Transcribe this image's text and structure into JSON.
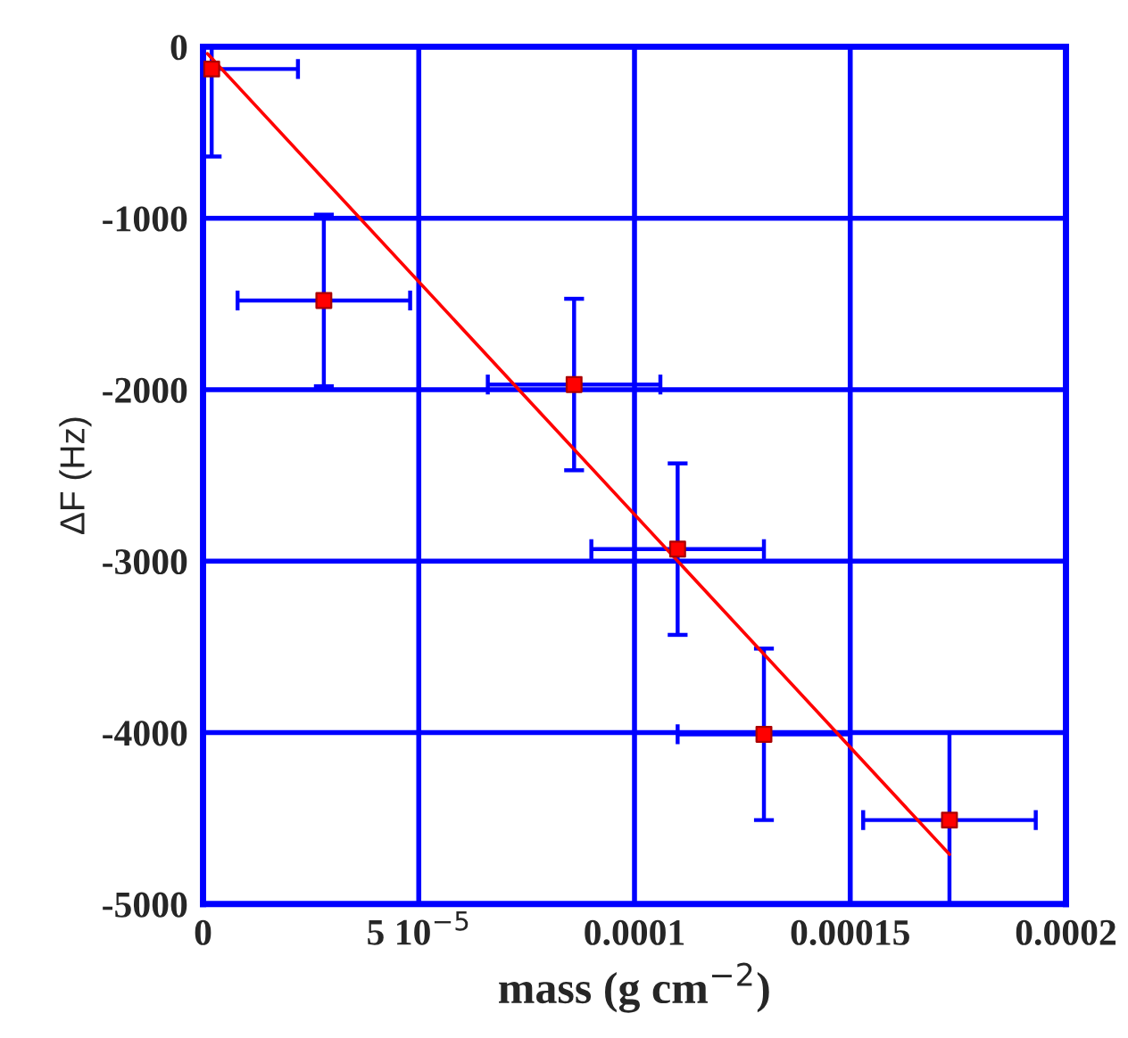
{
  "chart_data": {
    "type": "scatter",
    "xlabel": "mass (g cm$^{−2}$)",
    "ylabel": "ΔF (Hz)",
    "series": [
      {
        "color": "#ff0000",
        "x": [
          2e-06,
          2.8e-05,
          8.6e-05,
          0.00011,
          0.00013,
          0.000173
        ],
        "values": [
          -130,
          -1480,
          -1970,
          -2930,
          -4010,
          -4510
        ],
        "errors": [
          [
            -640,
            0
          ],
          500,
          500,
          500,
          500,
          [
            -5000,
            -4000
          ]
        ],
        "xerrors": [
          [
            0,
            2.2e-05
          ],
          2e-05,
          2e-05,
          2e-05,
          [
            0.00011,
            0.00015
          ],
          2e-05
        ],
        "marker": "square"
      },
      {
        "type": "line",
        "color": "#ff0000",
        "x": [
          1e-06,
          0.000173
        ],
        "values": [
          -40,
          -4710
        ],
        "marker": "none"
      }
    ],
    "xlim": [
      0,
      0.0002
    ],
    "xticks": [
      0,
      {
        "value": 5e-05,
        "label": "5 10$^{−5}$"
      },
      0.0001,
      0.00015,
      0.0002
    ],
    "ylim": [
      -5000,
      0
    ],
    "yticks": [
      -5000,
      -4000,
      -3000,
      -2000,
      -1000,
      0
    ],
    "grid": true,
    "legend": false
  }
}
